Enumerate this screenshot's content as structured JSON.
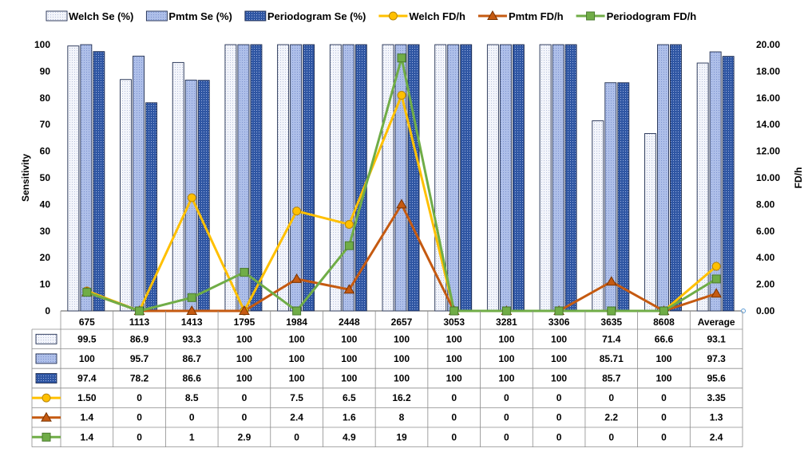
{
  "chart_data": {
    "type": "bar",
    "categories": [
      "675",
      "1113",
      "1413",
      "1795",
      "1984",
      "2448",
      "2657",
      "3053",
      "3281",
      "3306",
      "3635",
      "8608",
      "Average"
    ],
    "series": [
      {
        "name": "Welch Se (%)",
        "kind": "bar",
        "axis": "left",
        "color": "#eef0f8",
        "pattern": "dots-light",
        "values": [
          99.5,
          86.9,
          93.3,
          100,
          100,
          100,
          100,
          100,
          100,
          100,
          71.4,
          66.6,
          93.1
        ],
        "labels": [
          "99.5",
          "86.9",
          "93.3",
          "100",
          "100",
          "100",
          "100",
          "100",
          "100",
          "100",
          "71.4",
          "66.6",
          "93.1"
        ]
      },
      {
        "name": "Pmtm Se (%)",
        "kind": "bar",
        "axis": "left",
        "color": "#a8b8e6",
        "pattern": "dots-medium",
        "values": [
          100,
          95.7,
          86.7,
          100,
          100,
          100,
          100,
          100,
          100,
          100,
          85.71,
          100,
          97.3
        ],
        "labels": [
          "100",
          "95.7",
          "86.7",
          "100",
          "100",
          "100",
          "100",
          "100",
          "100",
          "100",
          "85.71",
          "100",
          "97.3"
        ]
      },
      {
        "name": "Periodogram Se (%)",
        "kind": "bar",
        "axis": "left",
        "color": "#2a4f9a",
        "pattern": "dots-dark",
        "values": [
          97.4,
          78.2,
          86.6,
          100,
          100,
          100,
          100,
          100,
          100,
          100,
          85.7,
          100,
          95.6
        ],
        "labels": [
          "97.4",
          "78.2",
          "86.6",
          "100",
          "100",
          "100",
          "100",
          "100",
          "100",
          "100",
          "85.7",
          "100",
          "95.6"
        ]
      },
      {
        "name": "Welch FD/h",
        "kind": "line",
        "axis": "right",
        "color": "#ffc000",
        "marker": "circle",
        "marker_fill": "#ffc000",
        "marker_stroke": "#b8860b",
        "values": [
          1.5,
          0,
          8.5,
          0,
          7.5,
          6.5,
          16.2,
          0,
          0,
          0,
          0,
          0,
          3.35
        ],
        "labels": [
          "1.50",
          "0",
          "8.5",
          "0",
          "7.5",
          "6.5",
          "16.2",
          "0",
          "0",
          "0",
          "0",
          "0",
          "3.35"
        ]
      },
      {
        "name": "Pmtm FD/h",
        "kind": "line",
        "axis": "right",
        "color": "#c55a11",
        "marker": "triangle",
        "marker_fill": "#c55a11",
        "marker_stroke": "#7a3300",
        "values": [
          1.4,
          0,
          0,
          0,
          2.4,
          1.6,
          8,
          0,
          0,
          0,
          2.2,
          0,
          1.3
        ],
        "labels": [
          "1.4",
          "0",
          "0",
          "0",
          "2.4",
          "1.6",
          "8",
          "0",
          "0",
          "0",
          "2.2",
          "0",
          "1.3"
        ]
      },
      {
        "name": "Periodogram FD/h",
        "kind": "line",
        "axis": "right",
        "color": "#70ad47",
        "marker": "square",
        "marker_fill": "#70ad47",
        "marker_stroke": "#4a7a2e",
        "values": [
          1.4,
          0,
          1,
          2.9,
          0,
          4.9,
          19,
          0,
          0,
          0,
          0,
          0,
          2.4
        ],
        "labels": [
          "1.4",
          "0",
          "1",
          "2.9",
          "0",
          "4.9",
          "19",
          "0",
          "0",
          "0",
          "0",
          "0",
          "2.4"
        ]
      }
    ],
    "y_left": {
      "label": "Sensitivity",
      "min": 0,
      "max": 100,
      "step": 10,
      "ticks": [
        "0",
        "10",
        "20",
        "30",
        "40",
        "50",
        "60",
        "70",
        "80",
        "90",
        "100"
      ]
    },
    "y_right": {
      "label": "FD/h",
      "min": 0,
      "max": 20,
      "step": 2,
      "ticks": [
        "0.00",
        "2.00",
        "4.00",
        "6.00",
        "8.00",
        "10.00",
        "12.00",
        "14.00",
        "16.00",
        "18.00",
        "20.00"
      ]
    },
    "grid": false,
    "legend_position": "top",
    "data_table": true
  }
}
